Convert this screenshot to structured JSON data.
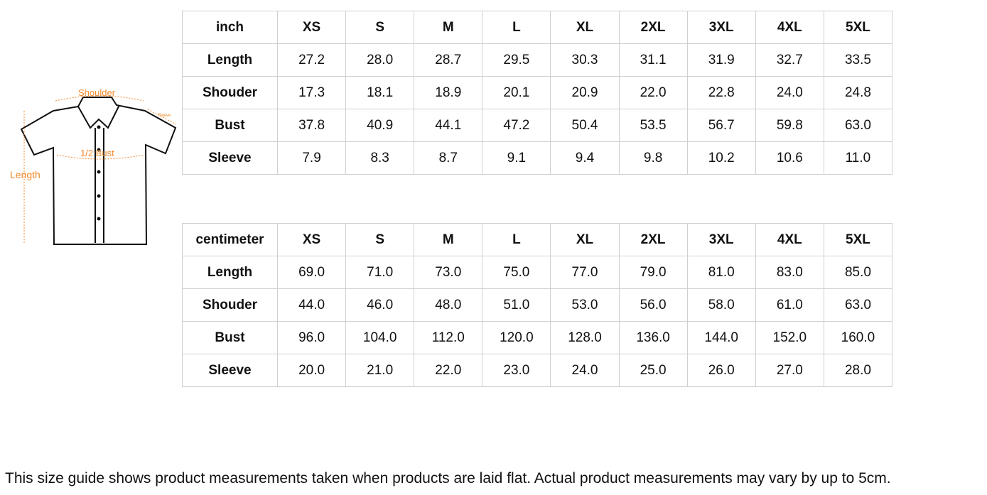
{
  "diagram": {
    "shoulder": "Shoulder",
    "sleeve": "Sleeve",
    "bust": "1/2 Bust",
    "length": "Length",
    "accent_color": "#f08a2c"
  },
  "sizes": [
    "XS",
    "S",
    "M",
    "L",
    "XL",
    "2XL",
    "3XL",
    "4XL",
    "5XL"
  ],
  "inch_table": {
    "unit": "inch",
    "rows": [
      {
        "label": "Length",
        "values": [
          "27.2",
          "28.0",
          "28.7",
          "29.5",
          "30.3",
          "31.1",
          "31.9",
          "32.7",
          "33.5"
        ]
      },
      {
        "label": "Shouder",
        "values": [
          "17.3",
          "18.1",
          "18.9",
          "20.1",
          "20.9",
          "22.0",
          "22.8",
          "24.0",
          "24.8"
        ]
      },
      {
        "label": "Bust",
        "values": [
          "37.8",
          "40.9",
          "44.1",
          "47.2",
          "50.4",
          "53.5",
          "56.7",
          "59.8",
          "63.0"
        ]
      },
      {
        "label": "Sleeve",
        "values": [
          "7.9",
          "8.3",
          "8.7",
          "9.1",
          "9.4",
          "9.8",
          "10.2",
          "10.6",
          "11.0"
        ]
      }
    ]
  },
  "cm_table": {
    "unit": "centimeter",
    "rows": [
      {
        "label": "Length",
        "values": [
          "69.0",
          "71.0",
          "73.0",
          "75.0",
          "77.0",
          "79.0",
          "81.0",
          "83.0",
          "85.0"
        ]
      },
      {
        "label": "Shouder",
        "values": [
          "44.0",
          "46.0",
          "48.0",
          "51.0",
          "53.0",
          "56.0",
          "58.0",
          "61.0",
          "63.0"
        ]
      },
      {
        "label": "Bust",
        "values": [
          "96.0",
          "104.0",
          "112.0",
          "120.0",
          "128.0",
          "136.0",
          "144.0",
          "152.0",
          "160.0"
        ]
      },
      {
        "label": "Sleeve",
        "values": [
          "20.0",
          "21.0",
          "22.0",
          "23.0",
          "24.0",
          "25.0",
          "26.0",
          "27.0",
          "28.0"
        ]
      }
    ]
  },
  "note": "This size guide shows product measurements taken when products are laid flat. Actual product measurements may vary by up to 5cm."
}
